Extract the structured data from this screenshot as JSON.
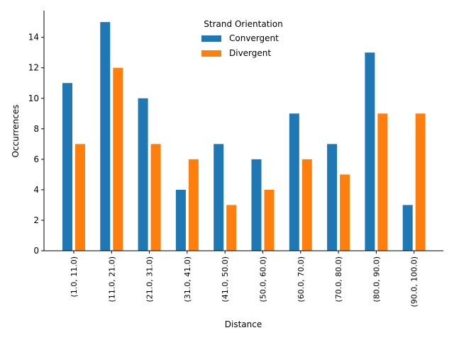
{
  "chart_data": {
    "type": "bar",
    "title": "",
    "xlabel": "Distance",
    "ylabel": "Occurrences",
    "categories": [
      "(1.0, 11.0)",
      "(11.0, 21.0)",
      "(21.0, 31.0)",
      "(31.0, 41.0)",
      "(41.0, 50.0)",
      "(50.0, 60.0)",
      "(60.0, 70.0)",
      "(70.0, 80.0)",
      "(80.0, 90.0)",
      "(90.0, 100.0)"
    ],
    "series": [
      {
        "name": "Convergent",
        "color": "#1f77b4",
        "values": [
          11,
          15,
          10,
          4,
          7,
          6,
          9,
          7,
          13,
          3
        ]
      },
      {
        "name": "Divergent",
        "color": "#ff7f0e",
        "values": [
          7,
          12,
          7,
          6,
          3,
          4,
          6,
          5,
          9,
          9
        ]
      }
    ],
    "ylim": [
      0,
      15.75
    ],
    "yticks": [
      0,
      2,
      4,
      6,
      8,
      10,
      12,
      14
    ],
    "grid": false,
    "legend": {
      "title": "Strand Orientation",
      "placement": "top-center"
    }
  }
}
